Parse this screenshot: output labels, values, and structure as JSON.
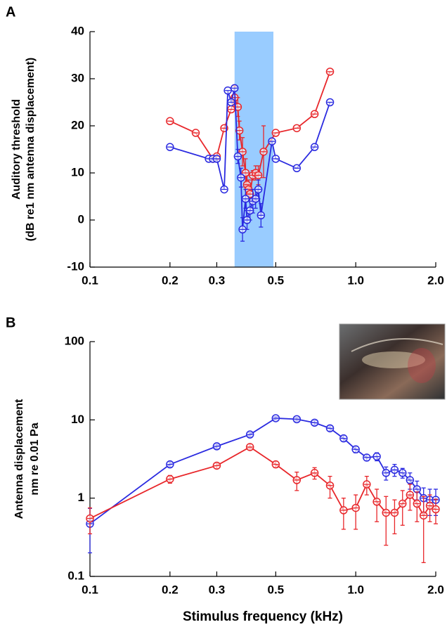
{
  "chart_data": [
    {
      "type": "line",
      "panel_label": "A",
      "y_label": [
        "Auditory threshold",
        "(dB re1 nm antenna displacement)"
      ],
      "xlog": true,
      "ylog": false,
      "xlim": [
        0.1,
        2.0
      ],
      "xticks": [
        0.1,
        0.2,
        0.3,
        0.5,
        {
          "value": 1,
          "label": "1.0"
        },
        {
          "value": 2,
          "label": "2.0"
        }
      ],
      "ylim": [
        -10,
        40
      ],
      "yticks": [
        40,
        30,
        20,
        10,
        0,
        -10
      ],
      "shaded_band": {
        "x": [
          0.35,
          0.49
        ],
        "color": "#99ccff"
      },
      "series": [
        {
          "color": "#e8262a",
          "x": [
            0.2,
            0.25,
            0.29,
            0.3,
            0.32,
            0.34,
            0.35,
            0.36,
            0.365,
            0.375,
            0.385,
            0.39,
            0.395,
            0.4,
            0.41,
            0.42,
            0.43,
            0.45,
            0.5,
            0.6,
            0.7,
            0.8
          ],
          "values": [
            21,
            18.5,
            13,
            13.5,
            19.5,
            23.5,
            26,
            24,
            19,
            14.5,
            10,
            7.5,
            6.5,
            5.5,
            9.5,
            10,
            9.5,
            14.5,
            18.5,
            19.5,
            22.5,
            31.5
          ],
          "errors": [
            0,
            0,
            0,
            0,
            0,
            0,
            2.5,
            2,
            2,
            3,
            3,
            2,
            2,
            1.5,
            1,
            1.5,
            2,
            5.5,
            0,
            0,
            0,
            0
          ]
        },
        {
          "color": "#2a2ae0",
          "x": [
            0.2,
            0.28,
            0.29,
            0.3,
            0.32,
            0.33,
            0.34,
            0.35,
            0.36,
            0.37,
            0.375,
            0.385,
            0.39,
            0.4,
            0.41,
            0.42,
            0.43,
            0.44,
            0.484,
            0.5,
            0.6,
            0.7,
            0.8
          ],
          "values": [
            15.5,
            13,
            13,
            13,
            6.5,
            27.5,
            25,
            28,
            13.5,
            9,
            -2,
            4.5,
            0,
            2,
            4,
            4.5,
            6.5,
            1,
            16.7,
            13,
            11,
            15.5,
            25
          ],
          "errors": [
            0,
            0,
            0,
            0,
            0,
            0,
            0,
            0,
            1.5,
            2,
            2.5,
            2,
            2,
            2,
            2.5,
            2,
            2,
            2.5,
            0,
            0,
            0,
            0,
            0
          ]
        }
      ]
    },
    {
      "type": "line",
      "panel_label": "B",
      "y_label": [
        "Antenna displacement",
        "nm re 0.01 Pa"
      ],
      "x_label": "Stimulus frequency (kHz)",
      "xlog": true,
      "ylog": true,
      "xlim": [
        0.1,
        2.0
      ],
      "xticks": [
        0.1,
        0.2,
        0.3,
        0.5,
        {
          "value": 1,
          "label": "1.0"
        },
        {
          "value": 2,
          "label": "2.0"
        }
      ],
      "ylim": [
        0.1,
        100
      ],
      "yticks": [
        100,
        10,
        1,
        0.1
      ],
      "series": [
        {
          "color": "#2a2ae0",
          "x": [
            0.1,
            0.2,
            0.3,
            0.4,
            0.5,
            0.6,
            0.7,
            0.8,
            0.9,
            1.0,
            1.1,
            1.2,
            1.3,
            1.4,
            1.5,
            1.6,
            1.7,
            1.8,
            1.9,
            2.0
          ],
          "values": [
            0.47,
            2.7,
            4.6,
            6.5,
            10.5,
            10.2,
            9.2,
            7.8,
            5.8,
            4.2,
            3.3,
            3.4,
            2.1,
            2.3,
            2.1,
            1.7,
            1.3,
            1.0,
            0.95,
            0.95
          ],
          "errors": [
            0.27,
            0.2,
            0.3,
            0.4,
            0.5,
            0.5,
            0.6,
            0.6,
            0.5,
            0.4,
            0.3,
            0.4,
            0.4,
            0.4,
            0.3,
            0.4,
            0.35,
            0.35,
            0.35,
            0.35
          ]
        },
        {
          "color": "#e8262a",
          "x": [
            0.1,
            0.2,
            0.3,
            0.4,
            0.5,
            0.6,
            0.7,
            0.8,
            0.9,
            1.0,
            1.1,
            1.2,
            1.3,
            1.4,
            1.5,
            1.6,
            1.7,
            1.8,
            1.9,
            2.0
          ],
          "values": [
            0.55,
            1.75,
            2.6,
            4.5,
            2.7,
            1.7,
            2.1,
            1.45,
            0.7,
            0.75,
            1.5,
            0.9,
            0.65,
            0.65,
            0.85,
            1.1,
            0.85,
            0.6,
            0.8,
            0.72
          ],
          "errors": [
            0.2,
            0.2,
            0.2,
            0.4,
            0.25,
            0.45,
            0.35,
            0.45,
            0.3,
            0.35,
            0.4,
            0.4,
            0.4,
            0.3,
            0.4,
            0.4,
            0.35,
            0.45,
            0.3,
            0.25
          ]
        }
      ]
    }
  ]
}
